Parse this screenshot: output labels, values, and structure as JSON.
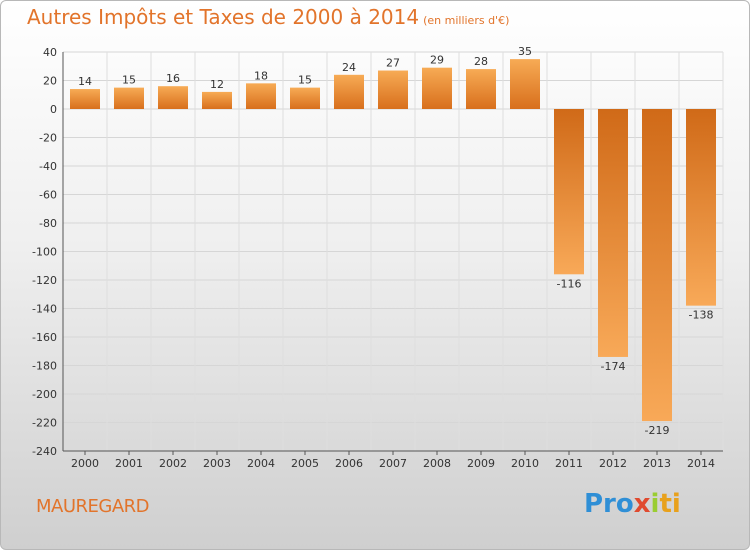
{
  "title": "Autres Impôts et Taxes de 2000 à 2014",
  "subtitle": "(en milliers d'€)",
  "commune": "MAUREGARD",
  "logo": {
    "p1": "Pro",
    "p2": "x",
    "p3": "i",
    "p4": "ti"
  },
  "colors": {
    "bar_light": "#f6a64e",
    "bar_dark": "#d9701c",
    "text_accent": "#e2742b"
  },
  "chart_data": {
    "type": "bar",
    "categories": [
      "2000",
      "2001",
      "2002",
      "2003",
      "2004",
      "2005",
      "2006",
      "2007",
      "2008",
      "2009",
      "2010",
      "2011",
      "2012",
      "2013",
      "2014"
    ],
    "values": [
      14,
      15,
      16,
      12,
      18,
      15,
      24,
      27,
      29,
      28,
      35,
      -116,
      -174,
      -219,
      -138
    ],
    "labels": [
      "14",
      "15",
      "16",
      "12",
      "18",
      "15",
      "24",
      "27",
      "29",
      "28",
      "35",
      "-116",
      "-174",
      "-219",
      "-138"
    ],
    "ylim": [
      -240,
      40
    ],
    "yticks": [
      40,
      20,
      0,
      -20,
      -40,
      -60,
      -80,
      -100,
      -120,
      -140,
      -160,
      -180,
      -200,
      -220,
      -240
    ],
    "grid": true,
    "xlabel": "",
    "ylabel": ""
  }
}
